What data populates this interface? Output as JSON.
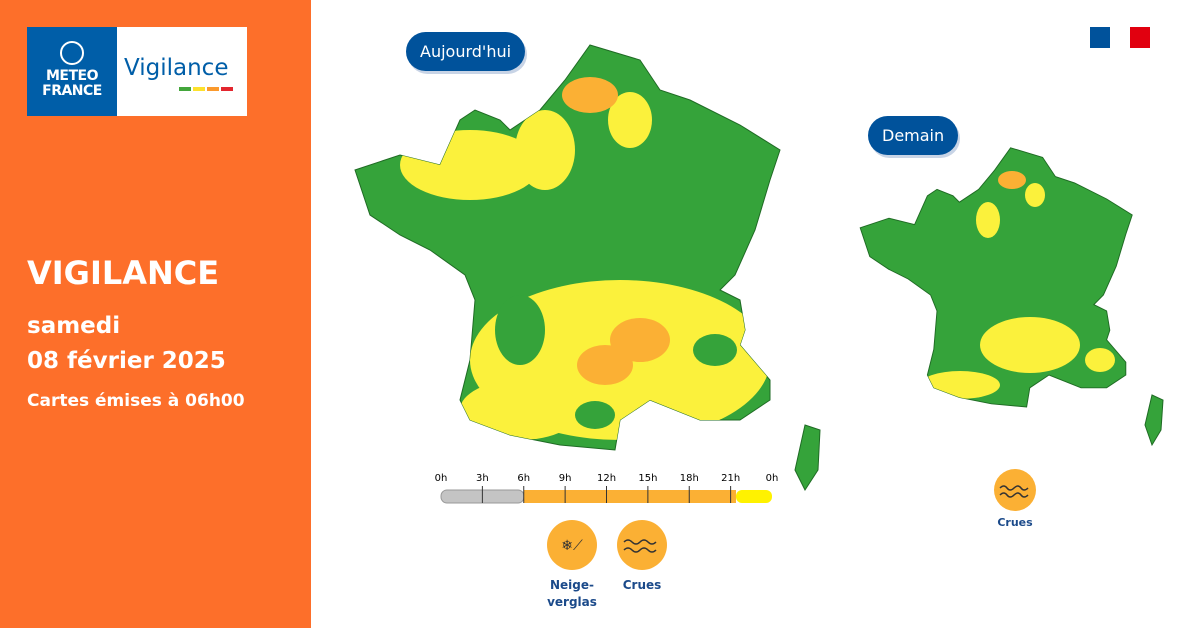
{
  "logo": {
    "line1": "METEO",
    "line2": "FRANCE",
    "product": "Vigilance"
  },
  "sidebar": {
    "title": "VIGILANCE",
    "day": "samedi",
    "date": "08 février 2025",
    "issued": "Cartes émises à 06h00"
  },
  "today": {
    "label": "Aujourd'hui",
    "timeline": [
      "0h",
      "3h",
      "6h",
      "9h",
      "12h",
      "15h",
      "18h",
      "21h",
      "0h"
    ],
    "hazards": [
      "Neige-verglas",
      "Crues"
    ]
  },
  "tomorrow": {
    "label": "Demain",
    "hazards": [
      "Crues"
    ]
  }
}
